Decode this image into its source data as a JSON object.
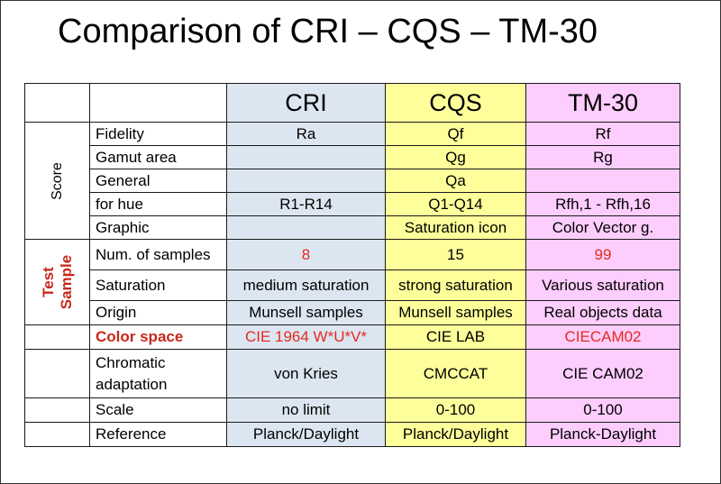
{
  "title": "Comparison of CRI – CQS – TM-30",
  "columns": [
    "CRI",
    "CQS",
    "TM-30"
  ],
  "groups": {
    "score": "Score",
    "test_sample_line1": "Test",
    "test_sample_line2": "Sample"
  },
  "rows": {
    "fidelity": {
      "label": "Fidelity",
      "cri": "Ra",
      "cqs": "Qf",
      "tm": "Rf"
    },
    "gamut": {
      "label": "Gamut area",
      "cri": "",
      "cqs": "Qg",
      "tm": "Rg"
    },
    "general": {
      "label": "General",
      "cri": "",
      "cqs": "Qa",
      "tm": ""
    },
    "hue": {
      "label": "for hue",
      "cri": "R1-R14",
      "cqs": "Q1-Q14",
      "tm": "Rfh,1 - Rfh,16"
    },
    "graphic": {
      "label": "Graphic",
      "cri": "",
      "cqs": "Saturation icon",
      "tm": "Color Vector g."
    },
    "samples": {
      "label": "Num. of samples",
      "cri": "8",
      "cqs": "15",
      "tm": "99"
    },
    "saturation": {
      "label": "Saturation",
      "cri": "medium saturation",
      "cqs": "strong saturation",
      "tm": "Various saturation"
    },
    "origin": {
      "label": "Origin",
      "cri": "Munsell samples",
      "cqs": "Munsell samples",
      "tm": "Real objects data"
    },
    "colorspace": {
      "label": "Color space",
      "cri": "CIE 1964 W*U*V*",
      "cqs": "CIE LAB",
      "tm": "CIECAM02"
    },
    "chromatic": {
      "label_line1": "Chromatic",
      "label_line2": "adaptation",
      "cri": "von Kries",
      "cqs": "CMCCAT",
      "tm": "CIE CAM02"
    },
    "scale": {
      "label": "Scale",
      "cri": "no limit",
      "cqs": "0-100",
      "tm": "0-100"
    },
    "reference": {
      "label": "Reference",
      "cri": "Planck/Daylight",
      "cqs": "Planck/Daylight",
      "tm": "Planck-Daylight"
    }
  },
  "colors": {
    "cri_bg": "#dce6f1",
    "cqs_bg": "#fefe9a",
    "tm_bg": "#fdcdfd",
    "highlight_red": "#e32b1f"
  }
}
